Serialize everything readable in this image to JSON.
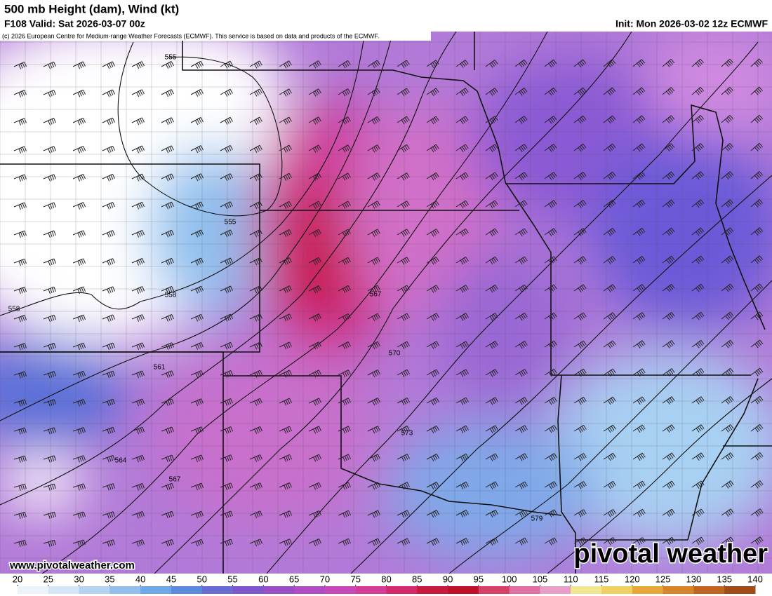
{
  "header": {
    "title": "500 mb Height (dam), Wind (kt)",
    "valid": "F108 Valid: Sat 2026-03-07 00z",
    "init": "Init: Mon 2026-03-02 12z ECMWF",
    "credit": "(c) 2026 European Centre for Medium-range Weather Forecasts (ECMWF). This service is based on data and products of the ECMWF."
  },
  "map": {
    "contour_labels": [
      555,
      555,
      558,
      558,
      561,
      564,
      567,
      567,
      570,
      573,
      579
    ]
  },
  "footer": {
    "website": "www.pivotalweather.com",
    "brand": "pivotal weather"
  },
  "colorbar": {
    "range": [
      20,
      140
    ],
    "ticks": [
      20,
      25,
      30,
      35,
      40,
      45,
      50,
      55,
      60,
      65,
      70,
      75,
      80,
      85,
      90,
      95,
      100,
      105,
      110,
      115,
      120,
      125,
      130,
      135,
      140
    ],
    "colors": [
      "#eef3fa",
      "#d6e6f6",
      "#b6d3f1",
      "#93bfec",
      "#6fa8e6",
      "#5b8ade",
      "#6a6cd6",
      "#7d57cc",
      "#9a4ec6",
      "#b04cc4",
      "#c848b8",
      "#d43c98",
      "#d42a6a",
      "#c81a3c",
      "#c0102a",
      "#d8406a",
      "#e070a0",
      "#e8a0c8",
      "#f0e890",
      "#f0d060",
      "#e8a838",
      "#d88428",
      "#c06420",
      "#a04c18"
    ]
  }
}
